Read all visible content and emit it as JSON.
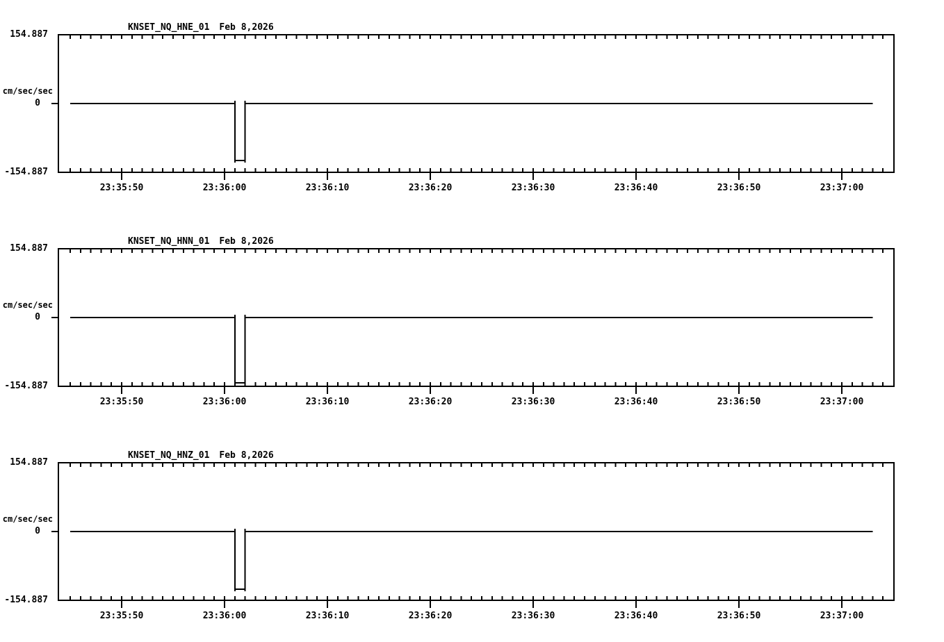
{
  "page": {
    "background": "#ffffff",
    "ink": "#000000"
  },
  "chart_data": [
    {
      "type": "line",
      "title": "KNSET_NQ_HNE_01",
      "date_label": "Feb 8,2026",
      "y_axis": {
        "top_label": "154.887",
        "zero_label": "0",
        "bottom_label": "-154.887",
        "units": "cm/sec/sec",
        "limits": [
          -154.887,
          154.887
        ]
      },
      "x_axis": {
        "tick_labels": [
          "23:35:50",
          "23:36:00",
          "23:36:10",
          "23:36:20",
          "23:36:30",
          "23:36:40",
          "23:36:50",
          "23:37:00"
        ],
        "minor_tick_interval_s": 1,
        "major_tick_interval_s": 10,
        "window_start": "23:35:44",
        "window_end": "23:37:05",
        "grid": false
      },
      "trace": {
        "baseline_value": 0,
        "start_time": "23:35:45",
        "end_time": "23:37:03",
        "pulse": {
          "start_time": "23:36:01",
          "end_time": "23:36:02",
          "amplitude": -128,
          "edge_spike_amplitude": 6
        }
      }
    },
    {
      "type": "line",
      "title": "KNSET_NQ_HNN_01",
      "date_label": "Feb 8,2026",
      "y_axis": {
        "top_label": "154.887",
        "zero_label": "0",
        "bottom_label": "-154.887",
        "units": "cm/sec/sec",
        "limits": [
          -154.887,
          154.887
        ]
      },
      "x_axis": {
        "tick_labels": [
          "23:35:50",
          "23:36:00",
          "23:36:10",
          "23:36:20",
          "23:36:30",
          "23:36:40",
          "23:36:50",
          "23:37:00"
        ],
        "minor_tick_interval_s": 1,
        "major_tick_interval_s": 10,
        "window_start": "23:35:44",
        "window_end": "23:37:05",
        "grid": false
      },
      "trace": {
        "baseline_value": 0,
        "start_time": "23:35:45",
        "end_time": "23:37:03",
        "pulse": {
          "start_time": "23:36:01",
          "end_time": "23:36:02",
          "amplitude": -147,
          "edge_spike_amplitude": 6
        }
      }
    },
    {
      "type": "line",
      "title": "KNSET_NQ_HNZ_01",
      "date_label": "Feb 8,2026",
      "y_axis": {
        "top_label": "154.887",
        "zero_label": "0",
        "bottom_label": "-154.887",
        "units": "cm/sec/sec",
        "limits": [
          -154.887,
          154.887
        ]
      },
      "x_axis": {
        "tick_labels": [
          "23:35:50",
          "23:36:00",
          "23:36:10",
          "23:36:20",
          "23:36:30",
          "23:36:40",
          "23:36:50",
          "23:37:00"
        ],
        "minor_tick_interval_s": 1,
        "major_tick_interval_s": 10,
        "window_start": "23:35:44",
        "window_end": "23:37:05",
        "grid": false
      },
      "trace": {
        "baseline_value": 0,
        "start_time": "23:35:45",
        "end_time": "23:37:03",
        "pulse": {
          "start_time": "23:36:01",
          "end_time": "23:36:02",
          "amplitude": -130,
          "edge_spike_amplitude": 6
        }
      }
    }
  ]
}
